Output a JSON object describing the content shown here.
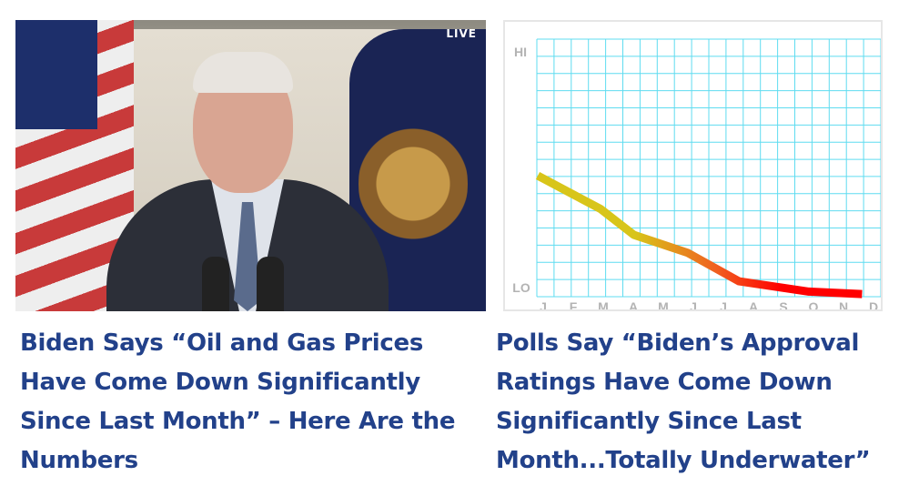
{
  "articles": [
    {
      "headline": "Biden Says “Oil and Gas Prices Have Come Down Significantly Since Last Month” – Here Are the Numbers",
      "badge": "LIVE"
    },
    {
      "headline": "Polls Say “Biden’s Approval Ratings Have Come Down Significantly Since Last Month...Totally Underwater”"
    }
  ],
  "chart_data": {
    "type": "line",
    "ylabel_top": "HI",
    "ylabel_bottom": "LO",
    "categories": [
      "J",
      "F",
      "M",
      "A",
      "M",
      "J",
      "J",
      "A",
      "S",
      "O",
      "N",
      "D"
    ],
    "x": [
      0,
      2.1,
      3.2,
      5,
      6.7,
      9,
      10.8
    ],
    "values": [
      47,
      34,
      24,
      17,
      6,
      2,
      1
    ],
    "ylim": [
      0,
      100
    ],
    "grid": true,
    "colors": {
      "grid": "#5fdcf0",
      "line_start": "#d8c51a",
      "line_mid": "#f06020",
      "line_end": "#ff0000",
      "labels": "#b3b3b3"
    }
  }
}
